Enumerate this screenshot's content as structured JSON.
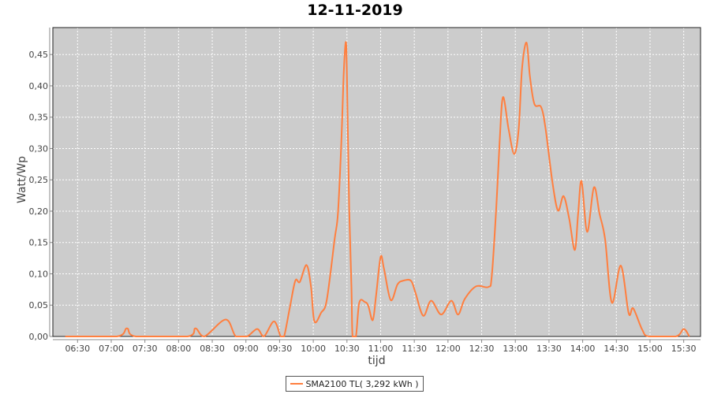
{
  "chart_data": {
    "type": "line",
    "title": "12-11-2019",
    "xlabel": "tijd",
    "ylabel": "Watt/Wp",
    "xlim": [
      "06:08",
      "15:45"
    ],
    "ylim": [
      0,
      0.493
    ],
    "grid": true,
    "legend_position": "bottom",
    "plot_background": "#cccccc",
    "x_ticks": [
      "06:30",
      "07:00",
      "07:30",
      "08:00",
      "08:30",
      "09:00",
      "09:30",
      "10:00",
      "10:30",
      "11:00",
      "11:30",
      "12:00",
      "12:30",
      "13:00",
      "13:30",
      "14:00",
      "14:30",
      "15:00",
      "15:30"
    ],
    "y_ticks": [
      "0,00",
      "0,05",
      "0,10",
      "0,15",
      "0,20",
      "0,25",
      "0,30",
      "0,35",
      "0,40",
      "0,45"
    ],
    "series": [
      {
        "name": "SMA2100 TL( 3,292 kWh )",
        "color": "#ff7f3f",
        "points": [
          [
            "06:19",
            0
          ],
          [
            "07:05",
            0
          ],
          [
            "07:14",
            0.013
          ],
          [
            "07:22",
            0
          ],
          [
            "08:08",
            0
          ],
          [
            "08:15",
            0.013
          ],
          [
            "08:23",
            0
          ],
          [
            "08:42",
            0.027
          ],
          [
            "08:51",
            0
          ],
          [
            "09:01",
            0
          ],
          [
            "09:10",
            0.012
          ],
          [
            "09:16",
            0
          ],
          [
            "09:25",
            0.024
          ],
          [
            "09:31",
            0
          ],
          [
            "09:34",
            0
          ],
          [
            "09:39",
            0.045
          ],
          [
            "09:44",
            0.089
          ],
          [
            "09:48",
            0.087
          ],
          [
            "09:54",
            0.114
          ],
          [
            "09:58",
            0.079
          ],
          [
            "10:01",
            0.024
          ],
          [
            "10:07",
            0.038
          ],
          [
            "10:12",
            0.058
          ],
          [
            "10:19",
            0.155
          ],
          [
            "10:22",
            0.197
          ],
          [
            "10:25",
            0.31
          ],
          [
            "10:27",
            0.415
          ],
          [
            "10:29",
            0.47
          ],
          [
            "10:30",
            0.415
          ],
          [
            "10:32",
            0.205
          ],
          [
            "10:34",
            0.079
          ],
          [
            "10:35",
            0
          ],
          [
            "10:38",
            0
          ],
          [
            "10:41",
            0.054
          ],
          [
            "10:46",
            0.055
          ],
          [
            "10:49",
            0.049
          ],
          [
            "10:53",
            0.026
          ],
          [
            "10:56",
            0.066
          ],
          [
            "11:00",
            0.127
          ],
          [
            "11:03",
            0.108
          ],
          [
            "11:09",
            0.058
          ],
          [
            "11:15",
            0.083
          ],
          [
            "11:20",
            0.089
          ],
          [
            "11:27",
            0.089
          ],
          [
            "11:31",
            0.07
          ],
          [
            "11:38",
            0.033
          ],
          [
            "11:45",
            0.057
          ],
          [
            "11:54",
            0.035
          ],
          [
            "12:03",
            0.057
          ],
          [
            "12:09",
            0.035
          ],
          [
            "12:15",
            0.06
          ],
          [
            "12:25",
            0.08
          ],
          [
            "12:36",
            0.079
          ],
          [
            "12:39",
            0.096
          ],
          [
            "12:43",
            0.205
          ],
          [
            "12:46",
            0.31
          ],
          [
            "12:49",
            0.382
          ],
          [
            "12:54",
            0.331
          ],
          [
            "12:59",
            0.291
          ],
          [
            "13:03",
            0.331
          ],
          [
            "13:06",
            0.428
          ],
          [
            "13:10",
            0.469
          ],
          [
            "13:13",
            0.415
          ],
          [
            "13:17",
            0.371
          ],
          [
            "13:23",
            0.366
          ],
          [
            "13:27",
            0.331
          ],
          [
            "13:33",
            0.247
          ],
          [
            "13:38",
            0.201
          ],
          [
            "13:43",
            0.224
          ],
          [
            "13:48",
            0.188
          ],
          [
            "13:53",
            0.138
          ],
          [
            "13:56",
            0.197
          ],
          [
            "13:59",
            0.248
          ],
          [
            "14:04",
            0.167
          ],
          [
            "14:10",
            0.238
          ],
          [
            "14:15",
            0.196
          ],
          [
            "14:20",
            0.155
          ],
          [
            "14:26",
            0.054
          ],
          [
            "14:34",
            0.113
          ],
          [
            "14:41",
            0.037
          ],
          [
            "14:45",
            0.045
          ],
          [
            "14:53",
            0.011
          ],
          [
            "14:59",
            0
          ],
          [
            "15:23",
            0
          ],
          [
            "15:30",
            0.012
          ],
          [
            "15:35",
            0
          ]
        ]
      }
    ]
  }
}
